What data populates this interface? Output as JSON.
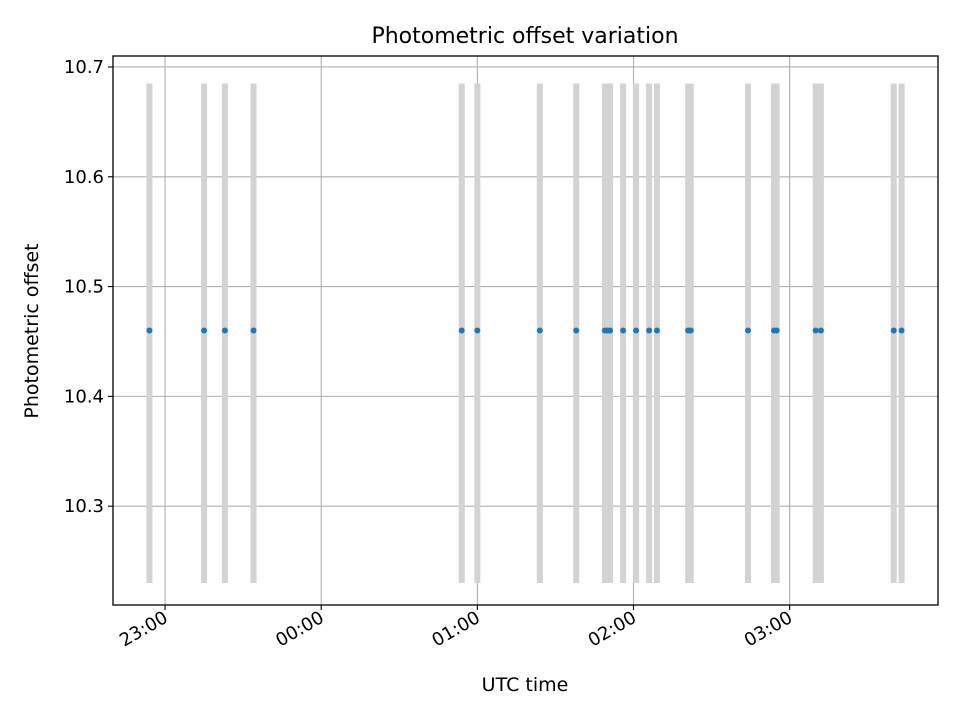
{
  "chart_data": {
    "type": "scatter",
    "title": "Photometric offset variation",
    "xlabel": "UTC time",
    "ylabel": "Photometric offset",
    "x_axis_type": "time",
    "xlim": [
      "22:40",
      "03:57"
    ],
    "ylim": [
      10.21,
      10.71
    ],
    "grid": true,
    "x_ticks": [
      "23:00",
      "00:00",
      "01:00",
      "02:00",
      "03:00"
    ],
    "y_ticks": [
      10.3,
      10.4,
      10.5,
      10.6,
      10.7
    ],
    "marker_color": "#1f77b4",
    "error_bar_color": "#d3d3d3",
    "series": [
      {
        "x": [
          "22:54",
          "23:15",
          "23:23",
          "23:34",
          "00:54",
          "01:00",
          "01:24",
          "01:38",
          "01:49",
          "01:50",
          "01:51",
          "01:56",
          "02:01",
          "02:06",
          "02:09",
          "02:21",
          "02:22",
          "02:44",
          "02:54",
          "02:55",
          "03:10",
          "03:12",
          "03:40",
          "03:43"
        ],
        "y": [
          10.46,
          10.46,
          10.46,
          10.46,
          10.46,
          10.46,
          10.46,
          10.46,
          10.46,
          10.46,
          10.46,
          10.46,
          10.46,
          10.46,
          10.46,
          10.46,
          10.46,
          10.46,
          10.46,
          10.46,
          10.46,
          10.46,
          10.46,
          10.46
        ],
        "yerr_low": [
          10.23,
          10.23,
          10.23,
          10.23,
          10.23,
          10.23,
          10.23,
          10.23,
          10.23,
          10.23,
          10.23,
          10.23,
          10.23,
          10.23,
          10.23,
          10.23,
          10.23,
          10.23,
          10.23,
          10.23,
          10.23,
          10.23,
          10.23,
          10.23
        ],
        "yerr_high": [
          10.685,
          10.685,
          10.685,
          10.685,
          10.685,
          10.685,
          10.685,
          10.685,
          10.685,
          10.685,
          10.685,
          10.685,
          10.685,
          10.685,
          10.685,
          10.685,
          10.685,
          10.685,
          10.685,
          10.685,
          10.685,
          10.685,
          10.685,
          10.685
        ]
      }
    ]
  }
}
